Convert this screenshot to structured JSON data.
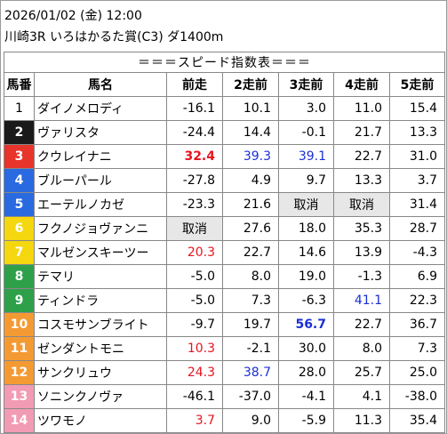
{
  "header": {
    "datetime": "2026/01/02 (金) 12:00",
    "race": "川崎3R いろはかるた賞(C3) ダ1400m"
  },
  "table": {
    "banner": "＝＝＝スピード指数表＝＝＝",
    "columns": [
      "馬番",
      "馬名",
      "前走",
      "2走前",
      "3走前",
      "4走前",
      "5走前"
    ],
    "frame_colors": {
      "1": "#ffffff",
      "2": "#1a1a1a",
      "3": "#e8352b",
      "4": "#2a6ae0",
      "5": "#f4d70f",
      "6": "#2fa04a",
      "7": "#f49a33",
      "8": "#f29bb4"
    },
    "rows": [
      {
        "num": "1",
        "name": "ダイノメロディ",
        "frame": "1",
        "cells": [
          {
            "v": "-16.1"
          },
          {
            "v": "10.1"
          },
          {
            "v": "3.0"
          },
          {
            "v": "11.0"
          },
          {
            "v": "15.4"
          }
        ]
      },
      {
        "num": "2",
        "name": "ヴァリスタ",
        "frame": "2",
        "cells": [
          {
            "v": "-24.4"
          },
          {
            "v": "14.4"
          },
          {
            "v": "-0.1"
          },
          {
            "v": "21.7"
          },
          {
            "v": "13.3"
          }
        ]
      },
      {
        "num": "3",
        "name": "クウレイナニ",
        "frame": "3",
        "cells": [
          {
            "v": "32.4",
            "c": "red",
            "b": true
          },
          {
            "v": "39.3",
            "c": "blue"
          },
          {
            "v": "39.1",
            "c": "blue"
          },
          {
            "v": "22.7"
          },
          {
            "v": "31.0"
          }
        ]
      },
      {
        "num": "4",
        "name": "ブルーパール",
        "frame": "4",
        "cells": [
          {
            "v": "-27.8"
          },
          {
            "v": "4.9"
          },
          {
            "v": "9.7"
          },
          {
            "v": "13.3"
          },
          {
            "v": "3.7"
          }
        ]
      },
      {
        "num": "5",
        "name": "エーテルノカゼ",
        "frame": "4",
        "cells": [
          {
            "v": "-23.3"
          },
          {
            "v": "21.6"
          },
          {
            "v": "取消",
            "x": true
          },
          {
            "v": "取消",
            "x": true
          },
          {
            "v": "31.4"
          }
        ]
      },
      {
        "num": "6",
        "name": "フクノジョヴァンニ",
        "frame": "5",
        "cells": [
          {
            "v": "取消",
            "x": true
          },
          {
            "v": "27.6"
          },
          {
            "v": "18.0"
          },
          {
            "v": "35.3"
          },
          {
            "v": "28.7"
          }
        ]
      },
      {
        "num": "7",
        "name": "マルゼンスキーツー",
        "frame": "5",
        "cells": [
          {
            "v": "20.3",
            "c": "red"
          },
          {
            "v": "22.7"
          },
          {
            "v": "14.6"
          },
          {
            "v": "13.9"
          },
          {
            "v": "-4.3"
          }
        ]
      },
      {
        "num": "8",
        "name": "テマリ",
        "frame": "6",
        "cells": [
          {
            "v": "-5.0"
          },
          {
            "v": "8.0"
          },
          {
            "v": "19.0"
          },
          {
            "v": "-1.3"
          },
          {
            "v": "6.9"
          }
        ]
      },
      {
        "num": "9",
        "name": "ティンドラ",
        "frame": "6",
        "cells": [
          {
            "v": "-5.0"
          },
          {
            "v": "7.3"
          },
          {
            "v": "-6.3"
          },
          {
            "v": "41.1",
            "c": "blue"
          },
          {
            "v": "22.3"
          }
        ]
      },
      {
        "num": "10",
        "name": "コスモサンブライト",
        "frame": "7",
        "cells": [
          {
            "v": "-9.7"
          },
          {
            "v": "19.7"
          },
          {
            "v": "56.7",
            "c": "blue",
            "b": true
          },
          {
            "v": "22.7"
          },
          {
            "v": "36.7"
          }
        ]
      },
      {
        "num": "11",
        "name": "ゼンダントモニ",
        "frame": "7",
        "cells": [
          {
            "v": "10.3",
            "c": "red"
          },
          {
            "v": "-2.1"
          },
          {
            "v": "30.0"
          },
          {
            "v": "8.0"
          },
          {
            "v": "7.3"
          }
        ]
      },
      {
        "num": "12",
        "name": "サンクリュウ",
        "frame": "7",
        "cells": [
          {
            "v": "24.3",
            "c": "red"
          },
          {
            "v": "38.7",
            "c": "blue"
          },
          {
            "v": "28.0"
          },
          {
            "v": "25.7"
          },
          {
            "v": "25.0"
          }
        ]
      },
      {
        "num": "13",
        "name": "ソニンクノヴァ",
        "frame": "8",
        "cells": [
          {
            "v": "-46.1"
          },
          {
            "v": "-37.0"
          },
          {
            "v": "-4.1"
          },
          {
            "v": "4.1"
          },
          {
            "v": "-38.0"
          }
        ]
      },
      {
        "num": "14",
        "name": "ツワモノ",
        "frame": "8",
        "cells": [
          {
            "v": "3.7",
            "c": "red"
          },
          {
            "v": "9.0"
          },
          {
            "v": "-5.9"
          },
          {
            "v": "11.3"
          },
          {
            "v": "35.4"
          }
        ]
      }
    ]
  }
}
